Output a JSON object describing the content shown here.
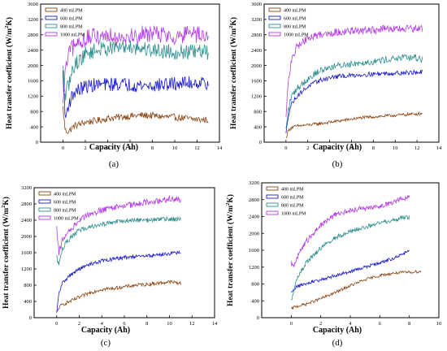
{
  "figure": {
    "panel_labels": [
      "(a)",
      "(b)",
      "(c)",
      "(d)"
    ]
  },
  "chart_data": [
    {
      "type": "line",
      "panel": "(a)",
      "xlabel": "Capacity (Ah)",
      "ylabel_text": "Heat transfer coefficient (W/m",
      "ylabel_sup": "2",
      "ylabel_end": "K)",
      "xlim": [
        -2,
        14
      ],
      "ylim": [
        0,
        3600
      ],
      "xticks": [
        0,
        2,
        4,
        6,
        8,
        10,
        12,
        14
      ],
      "yticks": [
        0,
        400,
        800,
        1200,
        1600,
        2000,
        2400,
        2800,
        3200,
        3600
      ],
      "legend_position": "top-left",
      "series": [
        {
          "name": "400 mLPM",
          "color": "#8b4513",
          "noise": 90,
          "x": [
            0,
            0.2,
            0.5,
            1,
            2,
            3,
            4,
            5,
            6,
            7,
            8,
            9,
            10,
            11,
            12,
            13
          ],
          "y": [
            900,
            300,
            280,
            420,
            520,
            560,
            620,
            650,
            680,
            700,
            690,
            660,
            650,
            620,
            590,
            580
          ]
        },
        {
          "name": "600 mLPM",
          "color": "#1a1acd",
          "noise": 180,
          "x": [
            0,
            0.2,
            0.5,
            1,
            2,
            3,
            4,
            5,
            6,
            7,
            8,
            9,
            10,
            11,
            12,
            13
          ],
          "y": [
            1800,
            600,
            1000,
            1300,
            1450,
            1500,
            1500,
            1520,
            1500,
            1480,
            1470,
            1500,
            1520,
            1540,
            1560,
            1550
          ]
        },
        {
          "name": "800 mLPM",
          "color": "#2f8f8f",
          "noise": 200,
          "x": [
            0,
            0.2,
            0.5,
            1,
            2,
            3,
            4,
            5,
            6,
            7,
            8,
            9,
            10,
            11,
            12,
            13
          ],
          "y": [
            1900,
            1200,
            1500,
            2000,
            2300,
            2400,
            2450,
            2480,
            2500,
            2450,
            2400,
            2380,
            2350,
            2350,
            2350,
            2350
          ]
        },
        {
          "name": "1000 mLPM",
          "color": "#b43ce6",
          "noise": 230,
          "x": [
            0,
            0.2,
            0.5,
            1,
            2,
            3,
            4,
            5,
            6,
            7,
            8,
            9,
            10,
            11,
            12,
            13
          ],
          "y": [
            900,
            1800,
            2300,
            2500,
            2700,
            2750,
            2800,
            2800,
            2750,
            2800,
            2850,
            2800,
            2750,
            2800,
            2800,
            2700
          ]
        }
      ]
    },
    {
      "type": "line",
      "panel": "(b)",
      "xlabel": "Capacity (Ah)",
      "ylabel_text": "Heat transfer coefficient (W/m",
      "ylabel_sup": "2",
      "ylabel_end": "K)",
      "xlim": [
        -2,
        14
      ],
      "ylim": [
        0,
        3600
      ],
      "xticks": [
        0,
        2,
        4,
        6,
        8,
        10,
        12,
        14
      ],
      "yticks": [
        0,
        400,
        800,
        1200,
        1600,
        2000,
        2400,
        2800,
        3200,
        3600
      ],
      "legend_position": "top-left",
      "series": [
        {
          "name": "400 mLPM",
          "color": "#8b4513",
          "noise": 40,
          "x": [
            0,
            0.2,
            0.5,
            1,
            2,
            3,
            4,
            5,
            6,
            7,
            8,
            9,
            10,
            11,
            12,
            12.5
          ],
          "y": [
            100,
            300,
            380,
            420,
            450,
            480,
            520,
            560,
            600,
            640,
            660,
            680,
            700,
            720,
            740,
            750
          ]
        },
        {
          "name": "600 mLPM",
          "color": "#1a1acd",
          "noise": 60,
          "x": [
            0,
            0.2,
            0.5,
            1,
            2,
            3,
            4,
            5,
            6,
            7,
            8,
            9,
            10,
            11,
            12,
            12.5
          ],
          "y": [
            200,
            700,
            1000,
            1200,
            1450,
            1600,
            1680,
            1720,
            1740,
            1760,
            1780,
            1790,
            1800,
            1810,
            1820,
            1820
          ]
        },
        {
          "name": "800 mLPM",
          "color": "#2f8f8f",
          "noise": 90,
          "x": [
            0,
            0.2,
            0.5,
            1,
            2,
            3,
            4,
            5,
            6,
            7,
            8,
            9,
            10,
            11,
            12,
            12.5
          ],
          "y": [
            300,
            800,
            1200,
            1400,
            1650,
            1850,
            1950,
            2000,
            2050,
            2080,
            2100,
            2150,
            2180,
            2200,
            2200,
            2150
          ]
        },
        {
          "name": "1000 mLPM",
          "color": "#b43ce6",
          "noise": 100,
          "x": [
            0,
            0.2,
            0.5,
            1,
            2,
            3,
            4,
            5,
            6,
            7,
            8,
            9,
            10,
            11,
            12,
            12.5
          ],
          "y": [
            600,
            1600,
            2100,
            2500,
            2700,
            2800,
            2850,
            2880,
            2900,
            2900,
            2920,
            2950,
            2950,
            2950,
            2950,
            2950
          ]
        }
      ]
    },
    {
      "type": "line",
      "panel": "(c)",
      "xlabel": "Capacity (Ah)",
      "ylabel_text": "Heat transfer coefficient (W/m",
      "ylabel_sup": "2",
      "ylabel_end": "K)",
      "xlim": [
        -2,
        14
      ],
      "ylim": [
        0,
        3200
      ],
      "xticks": [
        0,
        2,
        4,
        6,
        8,
        10,
        12,
        14
      ],
      "yticks": [
        0,
        400,
        800,
        1200,
        1600,
        2000,
        2400,
        2800,
        3200
      ],
      "legend_position": "top-left",
      "series": [
        {
          "name": "400 mLPM",
          "color": "#8b4513",
          "noise": 45,
          "x": [
            0,
            0.2,
            0.5,
            1,
            2,
            3,
            4,
            5,
            6,
            7,
            8,
            9,
            10,
            11
          ],
          "y": [
            100,
            250,
            320,
            380,
            500,
            620,
            700,
            720,
            760,
            800,
            820,
            850,
            880,
            850
          ]
        },
        {
          "name": "600 mLPM",
          "color": "#1a1acd",
          "noise": 45,
          "x": [
            0,
            0.2,
            0.5,
            1,
            2,
            3,
            4,
            5,
            6,
            7,
            8,
            9,
            10,
            11
          ],
          "y": [
            100,
            600,
            850,
            1000,
            1200,
            1320,
            1400,
            1440,
            1480,
            1500,
            1520,
            1550,
            1580,
            1600
          ]
        },
        {
          "name": "800 mLPM",
          "color": "#2f8f8f",
          "noise": 60,
          "x": [
            0,
            0.2,
            0.5,
            1,
            2,
            3,
            4,
            5,
            6,
            7,
            8,
            9,
            10,
            11
          ],
          "y": [
            1500,
            1300,
            1700,
            1900,
            2150,
            2250,
            2300,
            2350,
            2380,
            2400,
            2400,
            2420,
            2430,
            2430
          ]
        },
        {
          "name": "1000 mLPM",
          "color": "#b43ce6",
          "noise": 80,
          "x": [
            0,
            0.2,
            0.5,
            1,
            2,
            3,
            4,
            5,
            6,
            7,
            8,
            9,
            10,
            11
          ],
          "y": [
            2200,
            1600,
            1900,
            2100,
            2400,
            2550,
            2650,
            2700,
            2750,
            2800,
            2850,
            2880,
            2920,
            2900
          ]
        }
      ]
    },
    {
      "type": "line",
      "panel": "(d)",
      "xlabel": "Capacity (Ah)",
      "ylabel_text": "Heat transfer coefficient (W/m",
      "ylabel_sup": "2",
      "ylabel_end": "K)",
      "xlim": [
        -2,
        10
      ],
      "ylim": [
        0,
        3200
      ],
      "xticks": [
        0,
        2,
        4,
        6,
        8,
        10
      ],
      "yticks": [
        0,
        400,
        800,
        1200,
        1600,
        2000,
        2400,
        2800,
        3200
      ],
      "legend_position": "top-left",
      "series": [
        {
          "name": "400 mLPM",
          "color": "#8b4513",
          "noise": 35,
          "x": [
            0,
            0.2,
            0.5,
            1,
            2,
            3,
            4,
            5,
            6,
            7,
            8,
            8.8
          ],
          "y": [
            200,
            250,
            280,
            320,
            450,
            600,
            760,
            900,
            1000,
            1060,
            1080,
            1100
          ]
        },
        {
          "name": "600 mLPM",
          "color": "#1a1acd",
          "noise": 40,
          "x": [
            0,
            0.2,
            0.5,
            1,
            2,
            3,
            4,
            5,
            6,
            7,
            7.5,
            8
          ],
          "y": [
            600,
            700,
            750,
            800,
            900,
            1000,
            1100,
            1200,
            1300,
            1420,
            1500,
            1580
          ]
        },
        {
          "name": "800 mLPM",
          "color": "#2f8f8f",
          "noise": 55,
          "x": [
            0,
            0.2,
            0.5,
            1,
            2,
            3,
            4,
            5,
            6,
            7,
            7.5,
            8
          ],
          "y": [
            400,
            700,
            1000,
            1300,
            1650,
            1900,
            2050,
            2150,
            2250,
            2330,
            2360,
            2380
          ]
        },
        {
          "name": "1000 mLPM",
          "color": "#b43ce6",
          "noise": 65,
          "x": [
            0,
            0.2,
            0.5,
            1,
            2,
            3,
            4,
            5,
            6,
            7,
            7.5,
            8
          ],
          "y": [
            1300,
            1200,
            1500,
            1800,
            2200,
            2450,
            2550,
            2600,
            2650,
            2750,
            2820,
            2900
          ]
        }
      ]
    }
  ]
}
